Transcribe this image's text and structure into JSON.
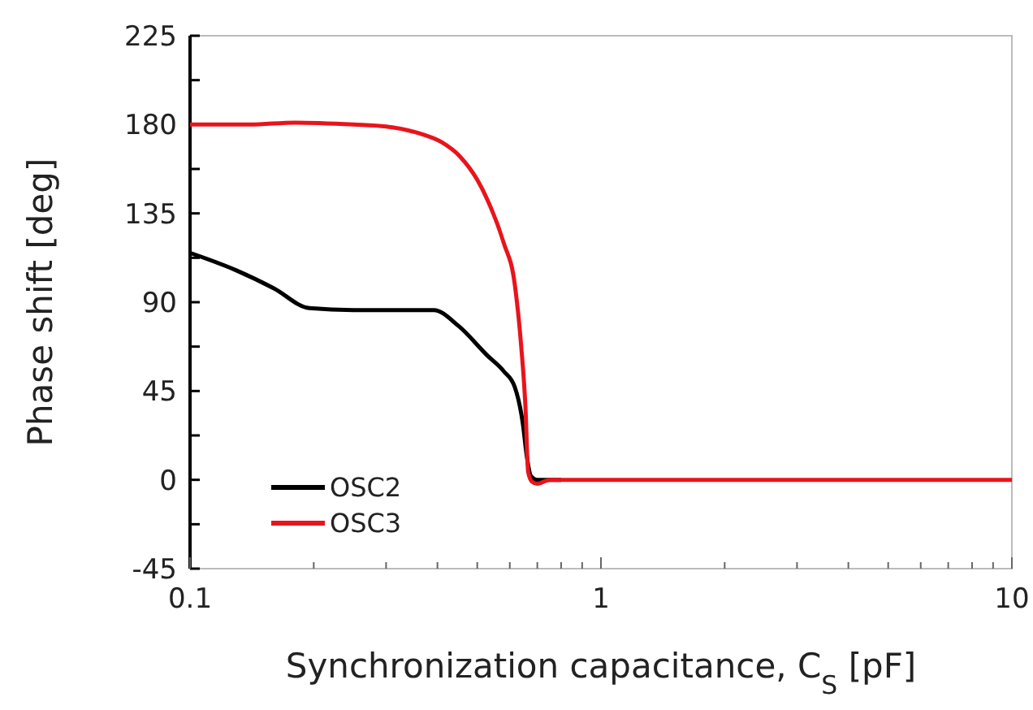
{
  "chart_data": {
    "type": "line",
    "xlabel": "Synchronization capacitance, C$_{S}$ [pF]",
    "ylabel": "Phase shift [deg]",
    "log": "x",
    "xlim": [
      0.1,
      10
    ],
    "ylim": [
      -45,
      225
    ],
    "xticks": [
      0.1,
      {
        "value": 0.2,
        "label": null
      },
      {
        "value": 0.3,
        "label": null
      },
      {
        "value": 0.4,
        "label": null
      },
      {
        "value": 0.5,
        "label": null
      },
      {
        "value": 0.6,
        "label": null
      },
      {
        "value": 0.7,
        "label": null
      },
      {
        "value": 0.8,
        "label": null
      },
      {
        "value": 0.9,
        "label": null
      },
      1,
      {
        "value": 2,
        "label": null
      },
      {
        "value": 3,
        "label": null
      },
      {
        "value": 4,
        "label": null
      },
      {
        "value": 5,
        "label": null
      },
      {
        "value": 6,
        "label": null
      },
      {
        "value": 7,
        "label": null
      },
      {
        "value": 8,
        "label": null
      },
      {
        "value": 9,
        "label": null
      },
      10
    ],
    "yticks": [
      -45,
      {
        "value": -22.5,
        "label": null
      },
      0,
      {
        "value": 22.5,
        "label": null
      },
      45,
      {
        "value": 67.5,
        "label": null
      },
      90,
      {
        "value": 112.5,
        "label": null
      },
      135,
      {
        "value": 157.5,
        "label": null
      },
      180,
      {
        "value": 202.5,
        "label": null
      },
      225
    ],
    "legend": "bottom left",
    "grid": false,
    "marker": "none",
    "line_style": "solid",
    "series": [
      {
        "name": "OSC2",
        "color": "#000000",
        "x": [
          0.1,
          0.13,
          0.16,
          0.195,
          0.25,
          0.3,
          0.392,
          0.45,
          0.529,
          0.58,
          0.617,
          0.646,
          0.66,
          0.675,
          0.7,
          0.8
        ],
        "values": [
          115,
          106,
          97,
          87,
          86,
          86,
          86,
          78,
          63,
          55,
          47,
          28,
          12,
          2,
          0,
          0
        ]
      },
      {
        "name": "OSC3",
        "color": "#e8141c",
        "x": [
          0.1,
          0.14,
          0.18,
          0.25,
          0.3,
          0.368,
          0.41,
          0.453,
          0.5,
          0.529,
          0.58,
          0.617,
          0.64,
          0.655,
          0.665,
          0.68,
          0.7,
          0.75,
          1,
          2,
          5,
          10
        ],
        "values": [
          180,
          180,
          181,
          180,
          179,
          175,
          171,
          164,
          152,
          142,
          120,
          99,
          67,
          37,
          4,
          -1,
          -2,
          0,
          0,
          0,
          0,
          0
        ]
      }
    ]
  }
}
